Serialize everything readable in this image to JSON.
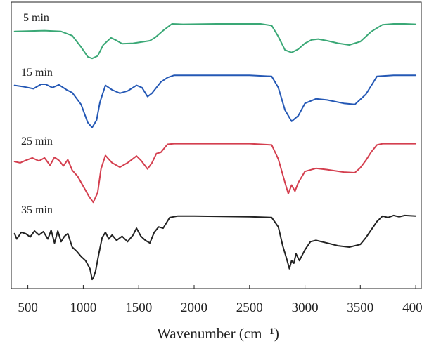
{
  "chart_data": {
    "type": "line",
    "xlabel": "Wavenumber (cm⁻¹)",
    "ylabel": "",
    "xlim": [
      350,
      4050
    ],
    "xticks": [
      500,
      1000,
      1500,
      2000,
      2500,
      3000,
      3500,
      4000
    ],
    "xtick_labels": [
      "500",
      "1000",
      "1500",
      "2000",
      "2500",
      "3000",
      "3500",
      "4000"
    ],
    "yaxis_visible": false,
    "grid": false,
    "stacked_offset": true,
    "series": [
      {
        "name": "5 min",
        "color": "#3aa876",
        "x": [
          380,
          500,
          650,
          800,
          900,
          980,
          1040,
          1080,
          1130,
          1180,
          1250,
          1290,
          1350,
          1450,
          1600,
          1650,
          1720,
          1800,
          1900,
          2200,
          2600,
          2700,
          2760,
          2820,
          2880,
          2940,
          3000,
          3060,
          3120,
          3200,
          3300,
          3400,
          3500,
          3600,
          3700,
          3800,
          3900,
          4000
        ],
        "y": [
          0.72,
          0.73,
          0.74,
          0.72,
          0.62,
          0.35,
          0.12,
          0.08,
          0.14,
          0.4,
          0.57,
          0.52,
          0.43,
          0.44,
          0.5,
          0.58,
          0.74,
          0.9,
          0.89,
          0.9,
          0.9,
          0.86,
          0.6,
          0.28,
          0.22,
          0.3,
          0.44,
          0.52,
          0.54,
          0.5,
          0.44,
          0.4,
          0.48,
          0.72,
          0.88,
          0.9,
          0.9,
          0.89
        ]
      },
      {
        "name": "15 min",
        "color": "#2458b5",
        "x": [
          380,
          450,
          550,
          620,
          660,
          720,
          780,
          850,
          900,
          980,
          1040,
          1080,
          1120,
          1150,
          1200,
          1260,
          1330,
          1400,
          1480,
          1530,
          1580,
          1620,
          1700,
          1760,
          1820,
          2000,
          2500,
          2700,
          2760,
          2820,
          2880,
          2940,
          3000,
          3100,
          3200,
          3350,
          3450,
          3550,
          3650,
          3800,
          4000
        ],
        "y": [
          0.78,
          0.76,
          0.72,
          0.8,
          0.8,
          0.74,
          0.79,
          0.7,
          0.65,
          0.44,
          0.12,
          0.03,
          0.16,
          0.48,
          0.78,
          0.7,
          0.64,
          0.68,
          0.78,
          0.74,
          0.58,
          0.64,
          0.84,
          0.92,
          0.96,
          0.96,
          0.96,
          0.94,
          0.74,
          0.34,
          0.14,
          0.24,
          0.46,
          0.54,
          0.52,
          0.46,
          0.44,
          0.62,
          0.94,
          0.96,
          0.96
        ]
      },
      {
        "name": "25 min",
        "color": "#d43f4f",
        "x": [
          380,
          430,
          480,
          540,
          600,
          650,
          700,
          740,
          780,
          820,
          860,
          900,
          950,
          1000,
          1050,
          1090,
          1130,
          1160,
          1200,
          1260,
          1330,
          1400,
          1480,
          1520,
          1580,
          1620,
          1660,
          1700,
          1760,
          1820,
          2000,
          2500,
          2700,
          2760,
          2820,
          2850,
          2880,
          2910,
          2940,
          3000,
          3100,
          3200,
          3350,
          3450,
          3500,
          3550,
          3600,
          3650,
          3700,
          3800,
          4000
        ],
        "y": [
          0.68,
          0.66,
          0.7,
          0.74,
          0.69,
          0.74,
          0.62,
          0.75,
          0.7,
          0.61,
          0.71,
          0.54,
          0.44,
          0.28,
          0.12,
          0.02,
          0.18,
          0.56,
          0.78,
          0.66,
          0.59,
          0.66,
          0.77,
          0.7,
          0.56,
          0.66,
          0.81,
          0.83,
          0.96,
          0.97,
          0.97,
          0.97,
          0.95,
          0.72,
          0.34,
          0.16,
          0.3,
          0.2,
          0.34,
          0.52,
          0.57,
          0.55,
          0.51,
          0.5,
          0.58,
          0.7,
          0.84,
          0.95,
          0.97,
          0.97,
          0.97
        ]
      },
      {
        "name": "35 min",
        "color": "#222222",
        "x": [
          380,
          400,
          440,
          480,
          520,
          560,
          600,
          640,
          680,
          710,
          740,
          770,
          800,
          830,
          860,
          900,
          940,
          980,
          1020,
          1060,
          1080,
          1090,
          1110,
          1140,
          1170,
          1200,
          1230,
          1260,
          1300,
          1350,
          1400,
          1450,
          1480,
          1520,
          1560,
          1600,
          1640,
          1680,
          1720,
          1780,
          1850,
          2000,
          2500,
          2700,
          2760,
          2800,
          2840,
          2860,
          2880,
          2900,
          2920,
          2950,
          3000,
          3050,
          3100,
          3200,
          3300,
          3400,
          3500,
          3550,
          3600,
          3650,
          3700,
          3750,
          3800,
          3850,
          3900,
          4000
        ],
        "y": [
          0.7,
          0.62,
          0.72,
          0.7,
          0.65,
          0.74,
          0.68,
          0.73,
          0.62,
          0.75,
          0.56,
          0.74,
          0.58,
          0.66,
          0.7,
          0.5,
          0.44,
          0.36,
          0.3,
          0.18,
          0.02,
          0.04,
          0.14,
          0.4,
          0.64,
          0.72,
          0.62,
          0.68,
          0.6,
          0.66,
          0.58,
          0.68,
          0.78,
          0.66,
          0.6,
          0.56,
          0.72,
          0.8,
          0.78,
          0.94,
          0.96,
          0.96,
          0.95,
          0.94,
          0.8,
          0.52,
          0.3,
          0.18,
          0.3,
          0.26,
          0.4,
          0.3,
          0.46,
          0.58,
          0.6,
          0.56,
          0.52,
          0.5,
          0.54,
          0.64,
          0.76,
          0.88,
          0.96,
          0.94,
          0.97,
          0.95,
          0.97,
          0.96
        ]
      }
    ]
  }
}
